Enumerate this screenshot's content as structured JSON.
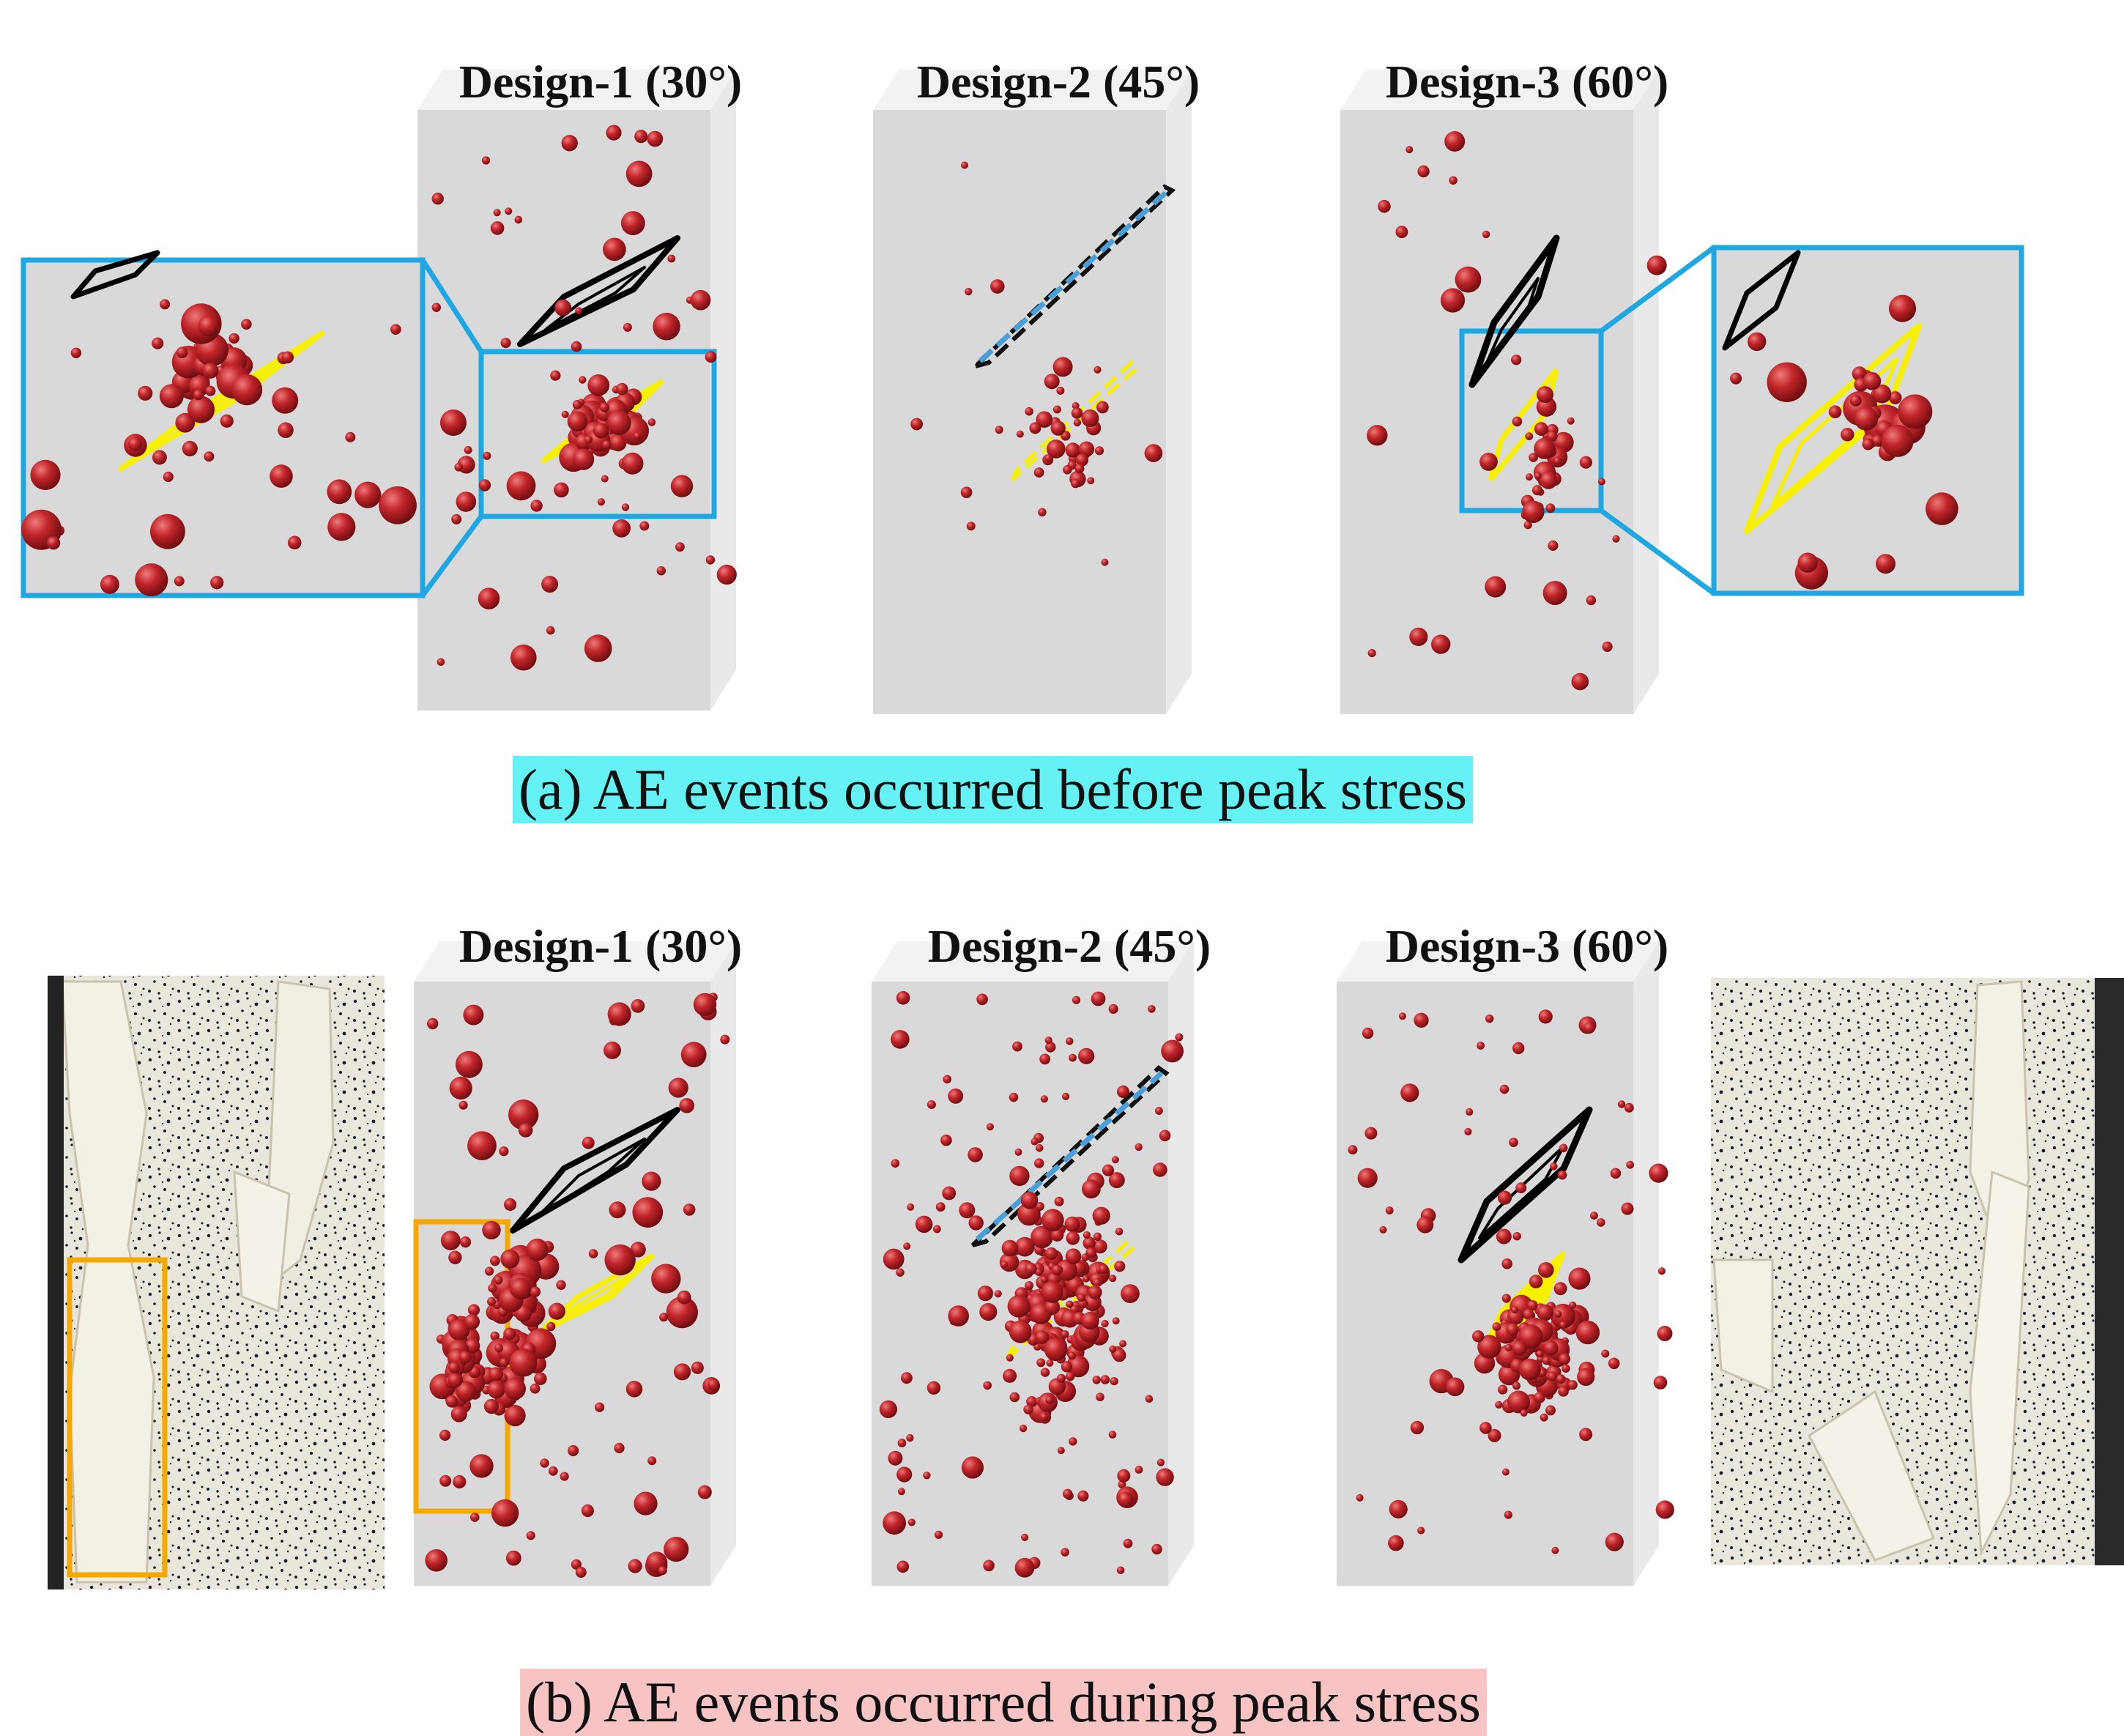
{
  "panel_a": {
    "caption": "(a) AE events occurred before peak stress",
    "caption_color": "#66f2f5",
    "designs": [
      {
        "title": "Design-1 (30°)"
      },
      {
        "title": "Design-2 (45°)"
      },
      {
        "title": "Design-3 (60°)"
      }
    ]
  },
  "panel_b": {
    "caption": "(b) AE events occurred during peak stress",
    "caption_color": "#f8c3c3",
    "designs": [
      {
        "title": "Design-1 (30°)"
      },
      {
        "title": "Design-2 (45°)"
      },
      {
        "title": "Design-3 (60°)"
      }
    ]
  },
  "colors": {
    "ae_event": "#c0262b",
    "specimen_face": "#d9d9d9",
    "zoom_frame": "#1ea7e1",
    "upper_flaw": "#000000",
    "lower_flaw": "#f7f000",
    "crack_highlight": "#f5a800",
    "upper_flaw_design2": "#4a9fd6"
  }
}
